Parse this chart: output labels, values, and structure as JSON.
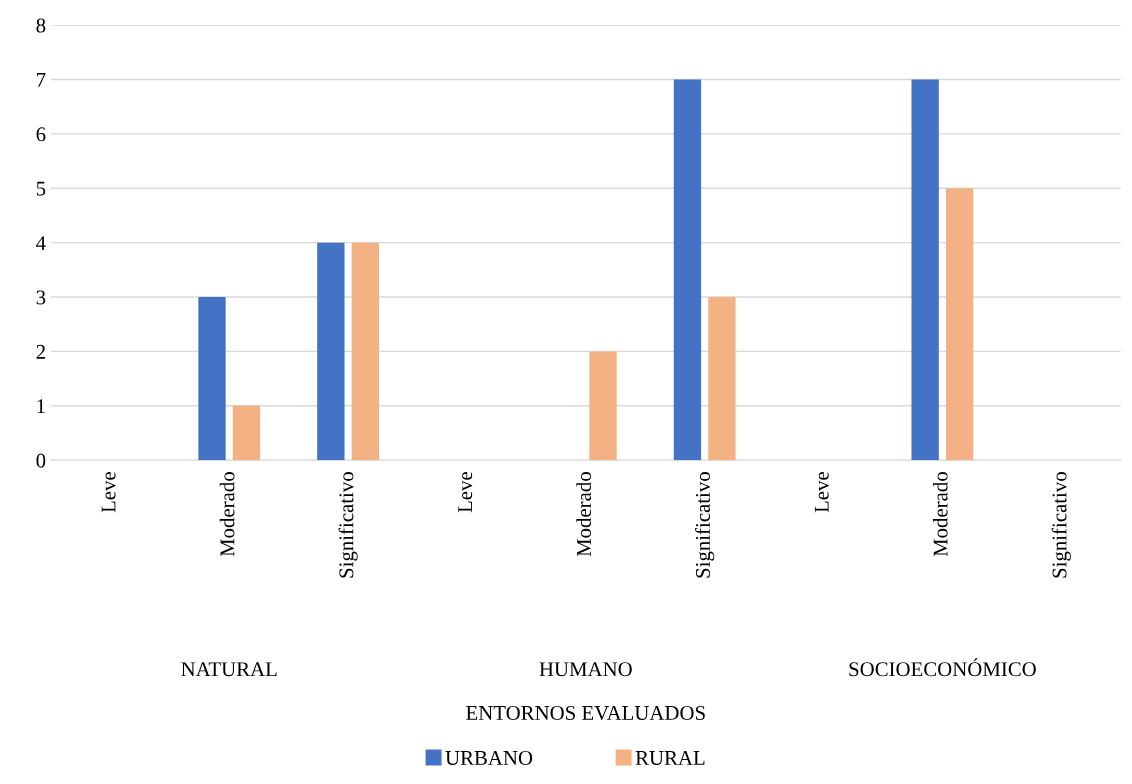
{
  "chart_data": {
    "type": "bar",
    "categories": [
      "Leve",
      "Moderado",
      "Significativo",
      "Leve",
      "Moderado",
      "Significativo",
      "Leve",
      "Moderado",
      "Significativo"
    ],
    "series": [
      {
        "name": "URBANO",
        "color": "#4472c4",
        "values": [
          0,
          3,
          4,
          0,
          0,
          7,
          0,
          7,
          0
        ]
      },
      {
        "name": "RURAL",
        "color": "#f4b183",
        "values": [
          0,
          1,
          4,
          0,
          2,
          3,
          0,
          5,
          0
        ]
      }
    ],
    "annotations": [
      "NATURAL",
      "HUMANO",
      "SOCIOECONÓMICO",
      "ENTORNOS EVALUADOS"
    ],
    "ylim": [
      0,
      8
    ],
    "yticks": [
      0,
      1,
      2,
      3,
      4,
      5,
      6,
      7,
      8
    ],
    "grid": "y",
    "legend": "bottom"
  }
}
